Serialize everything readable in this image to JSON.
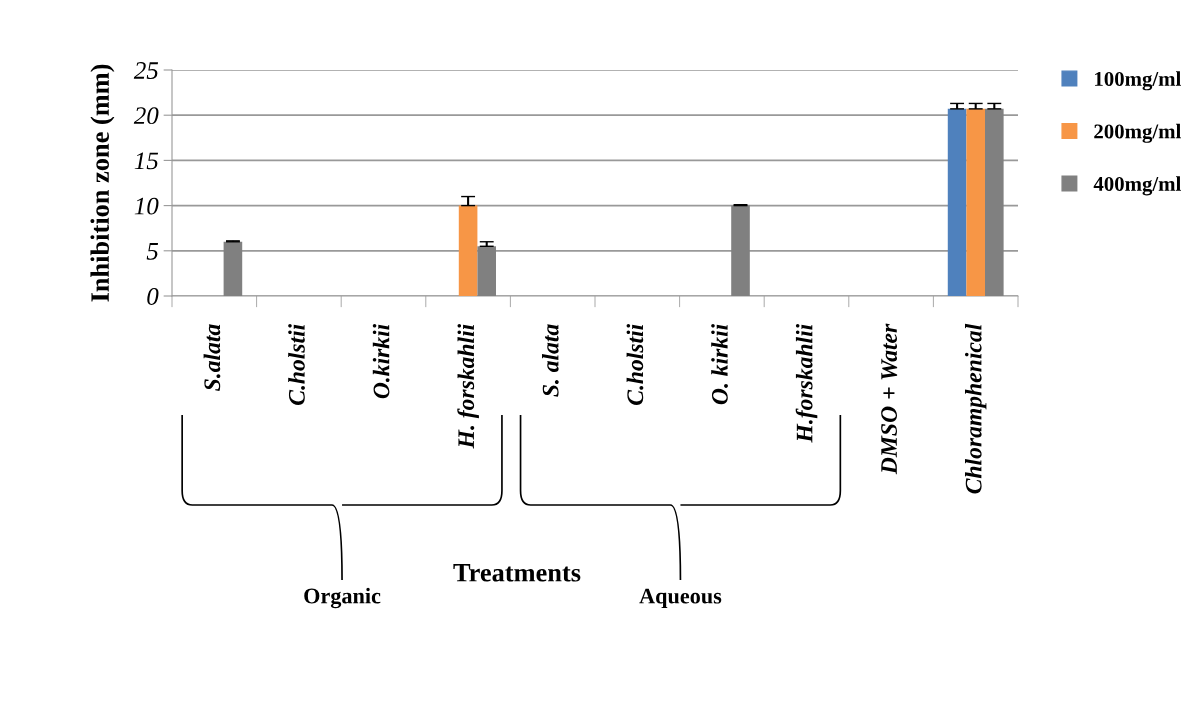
{
  "chart_data": {
    "type": "bar",
    "xlabel": "Treatments",
    "ylabel": "Inhibition zone (mm)",
    "categories": [
      "S.alata",
      "C.holstii",
      "O.kirkii",
      "H. forskahlii",
      "S. alata",
      "C.holstii",
      "O. kirkii",
      "H.forskahlii",
      "DMSO + Water",
      "Chloramphenical"
    ],
    "series": [
      {
        "name": "100mg/ml",
        "color": "#4f81bd",
        "values": [
          0,
          0,
          0,
          0,
          0,
          0,
          0,
          0,
          0,
          20.7
        ],
        "errors": [
          null,
          null,
          null,
          null,
          null,
          null,
          null,
          null,
          null,
          0.6
        ]
      },
      {
        "name": "200mg/ml",
        "color": "#f79646",
        "values": [
          0,
          0,
          0,
          10,
          0,
          0,
          0,
          0,
          0,
          20.7
        ],
        "errors": [
          null,
          null,
          null,
          1,
          null,
          null,
          null,
          null,
          null,
          0.6
        ]
      },
      {
        "name": "400mg/ml",
        "color": "#808080",
        "values": [
          6,
          0,
          0,
          5.5,
          0,
          0,
          10,
          0,
          0,
          20.7
        ],
        "errors": [
          0.1,
          null,
          null,
          0.5,
          null,
          null,
          0.1,
          null,
          null,
          0.6
        ]
      }
    ],
    "ylim": [
      0,
      25
    ],
    "yticks": [
      0,
      5,
      10,
      15,
      20,
      25
    ],
    "grid": "y",
    "legend": "right",
    "annotations": [
      "Organic",
      "Aqueous"
    ]
  }
}
